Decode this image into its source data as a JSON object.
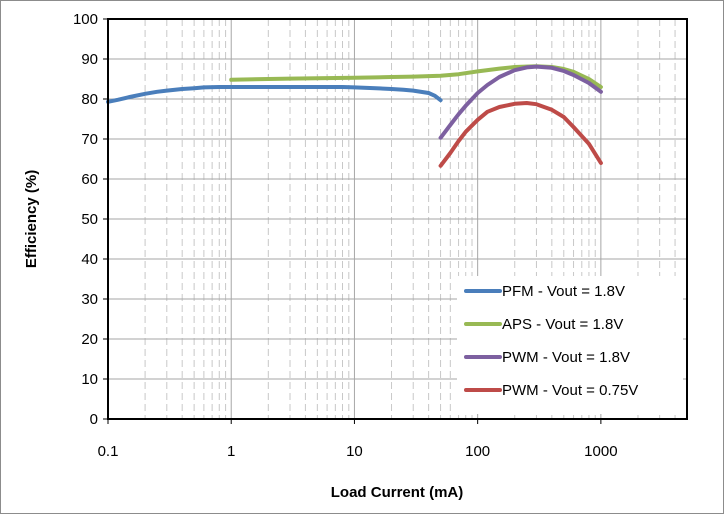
{
  "chart_data": {
    "type": "line",
    "title": "",
    "xlabel": "Load Current (mA)",
    "ylabel": "Efficiency (%)",
    "x_scale": "log",
    "xlim": [
      0.1,
      5000
    ],
    "ylim": [
      0,
      100
    ],
    "x_ticks": [
      0.1,
      1,
      10,
      100,
      1000
    ],
    "x_tick_labels": [
      "0.1",
      "1",
      "10",
      "100",
      "1000"
    ],
    "y_ticks": [
      0,
      10,
      20,
      30,
      40,
      50,
      60,
      70,
      80,
      90,
      100
    ],
    "y_tick_labels": [
      "0",
      "10",
      "20",
      "30",
      "40",
      "50",
      "60",
      "70",
      "80",
      "90",
      "100"
    ],
    "grid": {
      "major": true,
      "minor_x": true,
      "minor_style": "dashed"
    },
    "legend_position": "bottom-right",
    "series": [
      {
        "name": "PFM - Vout = 1.8V",
        "color": "#4a7ebb",
        "x": [
          0.1,
          0.12,
          0.15,
          0.2,
          0.25,
          0.3,
          0.4,
          0.5,
          0.6,
          0.8,
          1,
          2,
          3,
          5,
          8,
          10,
          15,
          20,
          25,
          30,
          40,
          45,
          50
        ],
        "y": [
          79.3,
          79.8,
          80.5,
          81.3,
          81.8,
          82.1,
          82.5,
          82.7,
          82.9,
          83.0,
          83.0,
          83.0,
          83.0,
          83.0,
          83.0,
          82.9,
          82.7,
          82.5,
          82.3,
          82.1,
          81.5,
          80.8,
          79.7
        ]
      },
      {
        "name": "APS - Vout = 1.8V",
        "color": "#98b954",
        "x": [
          1,
          2,
          3,
          5,
          10,
          15,
          20,
          30,
          50,
          70,
          100,
          150,
          200,
          300,
          400,
          500,
          600,
          800,
          1000
        ],
        "y": [
          84.8,
          85.0,
          85.1,
          85.2,
          85.3,
          85.4,
          85.5,
          85.6,
          85.8,
          86.2,
          86.9,
          87.6,
          88.0,
          88.2,
          88.0,
          87.5,
          86.8,
          85.0,
          83.0
        ]
      },
      {
        "name": "PWM - Vout = 1.8V",
        "color": "#7d60a0",
        "x": [
          50,
          60,
          70,
          80,
          100,
          120,
          150,
          200,
          250,
          300,
          400,
          500,
          600,
          800,
          1000
        ],
        "y": [
          70.3,
          73.5,
          76.2,
          78.3,
          81.5,
          83.5,
          85.5,
          87.2,
          87.9,
          88.1,
          87.8,
          87.0,
          86.0,
          84.0,
          81.8
        ]
      },
      {
        "name": "PWM - Vout = 0.75V",
        "color": "#be4b48",
        "x": [
          50,
          60,
          70,
          80,
          100,
          120,
          150,
          200,
          250,
          300,
          400,
          500,
          600,
          800,
          1000
        ],
        "y": [
          63.3,
          66.5,
          69.5,
          71.8,
          74.8,
          76.8,
          78.0,
          78.8,
          79.0,
          78.7,
          77.3,
          75.5,
          73.0,
          68.8,
          64.0
        ]
      }
    ]
  }
}
